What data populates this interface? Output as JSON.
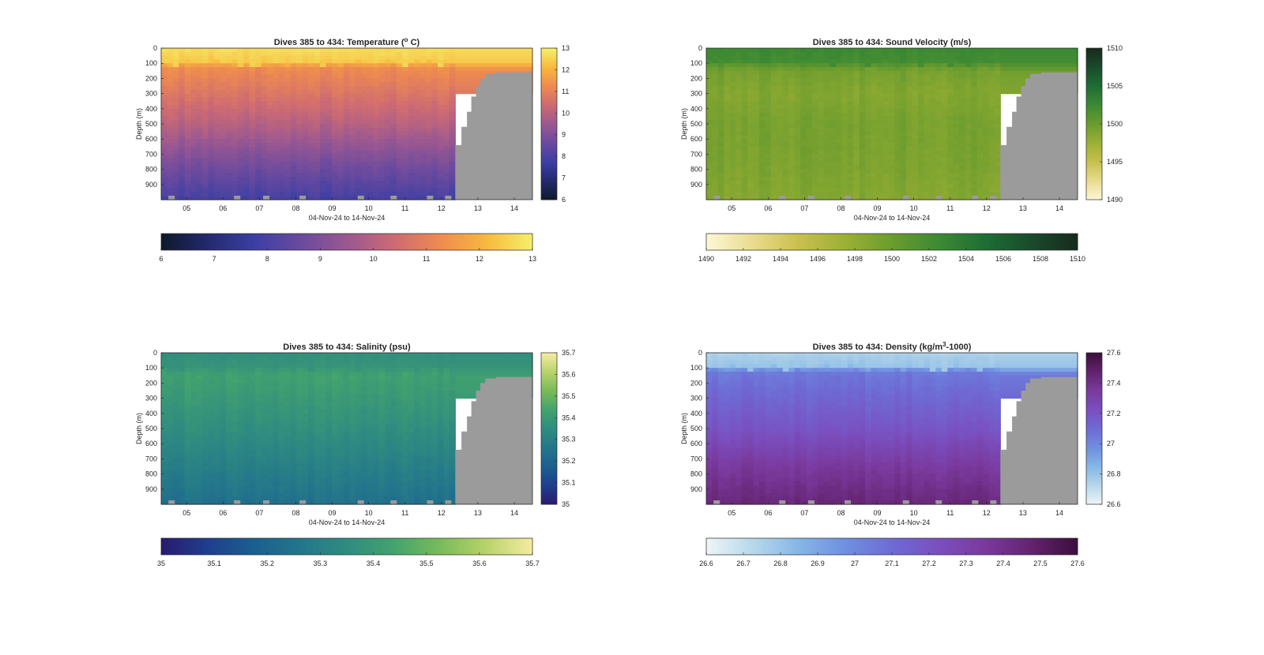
{
  "chart_data": [
    {
      "type": "heatmap",
      "title": "Dives 385 to 434: Temperature (",
      "title_sup": "o",
      "title_tail": " C)",
      "xlabel": "04-Nov-24 to 14-Nov-24",
      "ylabel": "Depth (m)",
      "x_ticks": [
        "05",
        "06",
        "07",
        "08",
        "09",
        "10",
        "11",
        "12",
        "13",
        "14"
      ],
      "y_ticks": [
        "0",
        "100",
        "200",
        "300",
        "400",
        "500",
        "600",
        "700",
        "800",
        "900"
      ],
      "xlim_days": [
        4.3,
        14.5
      ],
      "ylim": [
        0,
        1000
      ],
      "clim": [
        6,
        13
      ],
      "colorbar_ticks": [
        "6",
        "7",
        "8",
        "9",
        "10",
        "11",
        "12",
        "13"
      ],
      "horizontal_colorbar_ticks": [
        "6",
        "7",
        "8",
        "9",
        "10",
        "11",
        "12",
        "13"
      ],
      "colormap": [
        "#0d1a2a",
        "#232a6e",
        "#3b3fa3",
        "#6a4a9f",
        "#9a5891",
        "#cc6a74",
        "#ee8a50",
        "#f8b83e",
        "#f5f06a"
      ],
      "profile": {
        "depths": [
          0,
          80,
          130,
          250,
          500,
          750,
          1000
        ],
        "values": [
          12.7,
          12.4,
          11.3,
          10.9,
          10.0,
          8.9,
          7.9
        ]
      },
      "no_data_color": "#9b9b9b"
    },
    {
      "type": "heatmap",
      "title": "Dives 385 to 434: Sound Velocity (m/s)",
      "xlabel": "04-Nov-24 to 14-Nov-24",
      "ylabel": "Depth (m)",
      "x_ticks": [
        "05",
        "06",
        "07",
        "08",
        "09",
        "10",
        "11",
        "12",
        "13",
        "14"
      ],
      "y_ticks": [
        "0",
        "100",
        "200",
        "300",
        "400",
        "500",
        "600",
        "700",
        "800",
        "900"
      ],
      "xlim_days": [
        4.3,
        14.5
      ],
      "ylim": [
        0,
        1000
      ],
      "clim": [
        1490,
        1510
      ],
      "colorbar_ticks": [
        "1490",
        "1495",
        "1500",
        "1505",
        "1510"
      ],
      "horizontal_colorbar_ticks": [
        "1490",
        "1492",
        "1494",
        "1496",
        "1498",
        "1500",
        "1502",
        "1504",
        "1506",
        "1508",
        "1510"
      ],
      "colormap": [
        "#fdf8d6",
        "#e9dc8e",
        "#c8c04c",
        "#9cb034",
        "#6b9c2e",
        "#3d8a33",
        "#1e6e35",
        "#1a4b2b",
        "#172a1e"
      ],
      "profile": {
        "depths": [
          0,
          80,
          150,
          300,
          500,
          750,
          1000
        ],
        "values": [
          1502.6,
          1502.2,
          1499.5,
          1498.8,
          1499.4,
          1499.2,
          1498.7
        ]
      },
      "no_data_color": "#9b9b9b"
    },
    {
      "type": "heatmap",
      "title": "Dives 385 to 434: Salinity (psu)",
      "xlabel": "04-Nov-24 to 14-Nov-24",
      "ylabel": "Depth (m)",
      "x_ticks": [
        "05",
        "06",
        "07",
        "08",
        "09",
        "10",
        "11",
        "12",
        "13",
        "14"
      ],
      "y_ticks": [
        "0",
        "100",
        "200",
        "300",
        "400",
        "500",
        "600",
        "700",
        "800",
        "900"
      ],
      "xlim_days": [
        4.3,
        14.5
      ],
      "ylim": [
        0,
        1000
      ],
      "clim": [
        35,
        35.7
      ],
      "colorbar_ticks": [
        "35",
        "35.1",
        "35.2",
        "35.3",
        "35.4",
        "35.5",
        "35.6",
        "35.7"
      ],
      "horizontal_colorbar_ticks": [
        "35",
        "35.1",
        "35.2",
        "35.3",
        "35.4",
        "35.5",
        "35.6",
        "35.7"
      ],
      "colormap": [
        "#2a1a6e",
        "#1f3f8e",
        "#1a5f8f",
        "#24768b",
        "#2f8c80",
        "#43a26e",
        "#78bb5a",
        "#b8d26a",
        "#f6eca2"
      ],
      "profile": {
        "depths": [
          0,
          80,
          150,
          300,
          500,
          750,
          1000
        ],
        "values": [
          35.36,
          35.38,
          35.43,
          35.4,
          35.36,
          35.3,
          35.24
        ]
      },
      "no_data_color": "#9b9b9b"
    },
    {
      "type": "heatmap",
      "title": "Dives 385 to 434: Density (kg/m",
      "title_sup": "3",
      "title_tail": "-1000)",
      "xlabel": "04-Nov-24 to 14-Nov-24",
      "ylabel": "Depth (m)",
      "x_ticks": [
        "05",
        "06",
        "07",
        "08",
        "09",
        "10",
        "11",
        "12",
        "13",
        "14"
      ],
      "y_ticks": [
        "0",
        "100",
        "200",
        "300",
        "400",
        "500",
        "600",
        "700",
        "800",
        "900"
      ],
      "xlim_days": [
        4.3,
        14.5
      ],
      "ylim": [
        0,
        1000
      ],
      "clim": [
        26.6,
        27.6
      ],
      "colorbar_ticks": [
        "26.6",
        "26.8",
        "27",
        "27.2",
        "27.4",
        "27.6"
      ],
      "horizontal_colorbar_ticks": [
        "26.6",
        "26.7",
        "26.8",
        "26.9",
        "27",
        "27.1",
        "27.2",
        "27.3",
        "27.4",
        "27.5",
        "27.6"
      ],
      "colormap": [
        "#eef5f6",
        "#b7d8ea",
        "#86b6e6",
        "#6f8fe0",
        "#6e6bd4",
        "#7a4fbf",
        "#7a3a9e",
        "#63236f",
        "#3b0f3c"
      ],
      "profile": {
        "depths": [
          0,
          80,
          130,
          300,
          500,
          750,
          1000
        ],
        "values": [
          26.75,
          26.8,
          27.05,
          27.12,
          27.2,
          27.35,
          27.45
        ]
      },
      "no_data_color": "#9b9b9b"
    }
  ]
}
